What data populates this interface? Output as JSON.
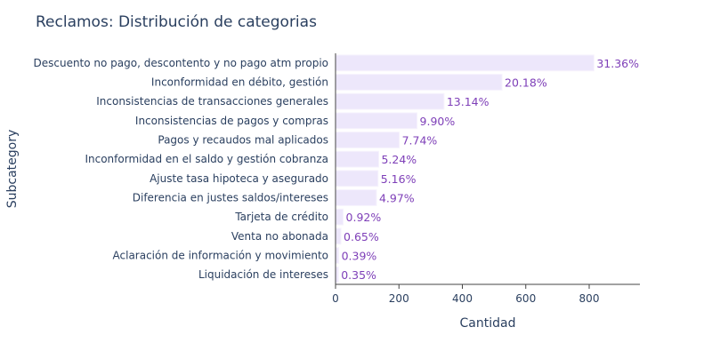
{
  "chart_data": {
    "type": "bar",
    "orientation": "horizontal",
    "title": "Reclamos: Distribución de categorias",
    "xlabel": "Cantidad",
    "ylabel": "Subcategory",
    "xlim": [
      0,
      960
    ],
    "xticks": [
      0,
      200,
      400,
      600,
      800
    ],
    "grid": false,
    "bar_color": "#ede7fb",
    "bar_border_color": "#f6f2fd",
    "label_color": "#7e3fb8",
    "categories": [
      "Descuento no pago, descontento y no pago atm propio",
      "Inconformidad en débito, gestión",
      "Inconsistencias de transacciones generales",
      "Inconsistencias de pagos y compras",
      "Pagos y recaudos mal aplicados",
      "Inconformidad en el saldo y gestión cobranza",
      "Ajuste tasa hipoteca y asegurado",
      "Diferencia en justes saldos/intereses",
      "Tarjeta de crédito",
      "Venta no abonada",
      "Aclaración de información y movimiento",
      "Liquidación de intereses"
    ],
    "values": [
      815,
      525,
      342,
      257,
      201,
      136,
      134,
      129,
      24,
      17,
      10,
      9
    ],
    "data_labels": [
      "31.36%",
      "20.18%",
      "13.14%",
      "9.90%",
      "7.74%",
      "5.24%",
      "5.16%",
      "4.97%",
      "0.92%",
      "0.65%",
      "0.39%",
      "0.35%"
    ]
  }
}
